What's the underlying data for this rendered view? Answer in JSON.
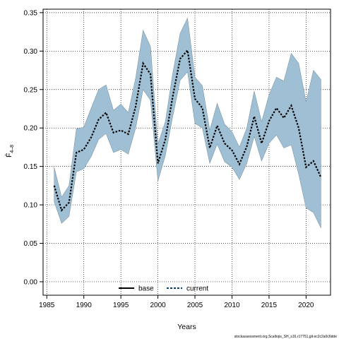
{
  "chart_data": {
    "type": "area",
    "xlabel": "Years",
    "ylabel": "F̄",
    "ylabel_subscript": "4–8",
    "xlim": [
      1984.5,
      2023.3
    ],
    "ylim": [
      -0.0175,
      0.3545
    ],
    "x_ticks": [
      1985,
      1990,
      1995,
      2000,
      2005,
      2010,
      2015,
      2020
    ],
    "y_ticks": [
      0.0,
      0.05,
      0.1,
      0.15,
      0.2,
      0.25,
      0.3,
      0.35
    ],
    "y_tick_labels": [
      "0.00",
      "0.05",
      "0.10",
      "0.15",
      "0.20",
      "0.25",
      "0.30",
      "0.35"
    ],
    "grid": true,
    "legend": {
      "placement": "bottom-center",
      "entries": [
        {
          "label": "base",
          "style": "solid",
          "color": "#000000"
        },
        {
          "label": "current",
          "style": "dashed",
          "color": "#0a3f6e"
        }
      ]
    },
    "x": [
      1986,
      1987,
      1988,
      1989,
      1990,
      1991,
      1992,
      1993,
      1994,
      1995,
      1996,
      1997,
      1998,
      1999,
      2000,
      2001,
      2002,
      2003,
      2004,
      2005,
      2006,
      2007,
      2008,
      2009,
      2010,
      2011,
      2012,
      2013,
      2014,
      2015,
      2016,
      2017,
      2018,
      2019,
      2020,
      2021,
      2022
    ],
    "series": [
      {
        "name": "current",
        "values": [
          0.125,
          0.093,
          0.103,
          0.168,
          0.172,
          0.188,
          0.211,
          0.22,
          0.194,
          0.197,
          0.192,
          0.228,
          0.284,
          0.27,
          0.154,
          0.185,
          0.241,
          0.29,
          0.301,
          0.238,
          0.226,
          0.174,
          0.203,
          0.18,
          0.171,
          0.153,
          0.176,
          0.215,
          0.18,
          0.209,
          0.226,
          0.213,
          0.229,
          0.2,
          0.149,
          0.157,
          0.136
        ],
        "upper": [
          0.149,
          0.11,
          0.125,
          0.199,
          0.201,
          0.226,
          0.25,
          0.256,
          0.223,
          0.231,
          0.22,
          0.265,
          0.327,
          0.306,
          0.179,
          0.208,
          0.271,
          0.323,
          0.343,
          0.266,
          0.255,
          0.197,
          0.232,
          0.205,
          0.195,
          0.175,
          0.2,
          0.248,
          0.208,
          0.243,
          0.266,
          0.261,
          0.297,
          0.284,
          0.234,
          0.275,
          0.263
        ],
        "lower": [
          0.104,
          0.076,
          0.085,
          0.143,
          0.147,
          0.163,
          0.185,
          0.193,
          0.168,
          0.172,
          0.166,
          0.2,
          0.25,
          0.236,
          0.131,
          0.164,
          0.215,
          0.262,
          0.273,
          0.206,
          0.2,
          0.154,
          0.179,
          0.156,
          0.149,
          0.133,
          0.154,
          0.189,
          0.157,
          0.18,
          0.191,
          0.174,
          0.178,
          0.14,
          0.096,
          0.09,
          0.07
        ]
      }
    ],
    "colors": {
      "ribbon_fill": "#9fc0d4",
      "ribbon_edge": "#7f97a6",
      "line": "#0a3f6e",
      "grid": "#000000"
    }
  },
  "footer": {
    "text": "stockassessment.org,Scallops_SH_s16,r17751,git:ec2c2a0c6dde"
  }
}
